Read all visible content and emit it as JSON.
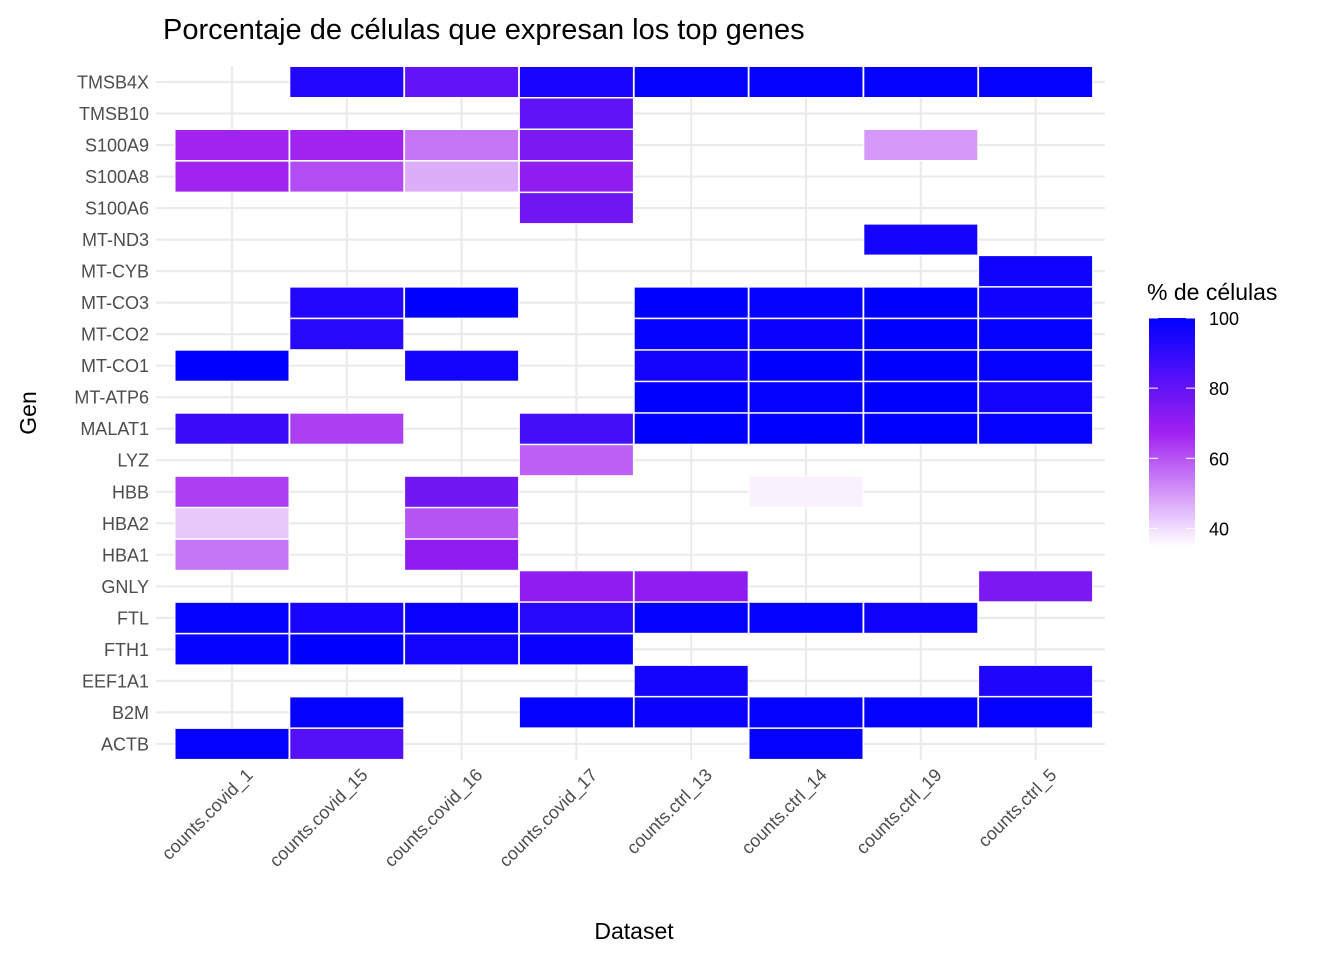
{
  "chart_data": {
    "type": "heatmap",
    "title": "Porcentaje de células que expresan los top genes",
    "xlabel": "Dataset",
    "ylabel": "Gen",
    "x": [
      "counts.covid_1",
      "counts.covid_15",
      "counts.covid_16",
      "counts.covid_17",
      "counts.ctrl_13",
      "counts.ctrl_14",
      "counts.ctrl_19",
      "counts.ctrl_5"
    ],
    "y": [
      "TMSB4X",
      "TMSB10",
      "S100A9",
      "S100A8",
      "S100A6",
      "MT-ND3",
      "MT-CYB",
      "MT-CO3",
      "MT-CO2",
      "MT-CO1",
      "MT-ATP6",
      "MALAT1",
      "LYZ",
      "HBB",
      "HBA2",
      "HBA1",
      "GNLY",
      "FTL",
      "FTH1",
      "EEF1A1",
      "B2M",
      "ACTB"
    ],
    "values": [
      [
        null,
        93,
        80,
        95,
        99,
        99,
        99,
        99
      ],
      [
        null,
        null,
        null,
        81,
        null,
        null,
        null,
        null
      ],
      [
        67,
        67,
        55,
        75,
        null,
        null,
        50,
        null
      ],
      [
        67,
        61,
        47,
        71,
        null,
        null,
        null,
        null
      ],
      [
        null,
        null,
        null,
        77,
        null,
        null,
        null,
        null
      ],
      [
        null,
        null,
        null,
        null,
        null,
        null,
        96,
        null
      ],
      [
        null,
        null,
        null,
        null,
        null,
        null,
        null,
        97
      ],
      [
        null,
        93,
        100,
        null,
        100,
        99,
        100,
        97
      ],
      [
        null,
        92,
        null,
        null,
        99,
        98,
        100,
        99
      ],
      [
        100,
        null,
        96,
        null,
        96,
        100,
        100,
        99
      ],
      [
        null,
        null,
        null,
        null,
        100,
        99,
        100,
        96
      ],
      [
        88,
        63,
        null,
        86,
        100,
        100,
        100,
        99
      ],
      [
        null,
        null,
        null,
        58,
        null,
        null,
        null,
        null
      ],
      [
        63,
        null,
        77,
        null,
        null,
        37,
        null,
        null
      ],
      [
        43,
        null,
        60,
        null,
        null,
        null,
        null,
        null
      ],
      [
        55,
        null,
        71,
        null,
        null,
        null,
        null,
        null
      ],
      [
        null,
        null,
        null,
        71,
        71,
        null,
        null,
        75
      ],
      [
        99,
        95,
        98,
        92,
        99,
        99,
        97,
        null
      ],
      [
        99,
        100,
        96,
        98,
        null,
        null,
        null,
        null
      ],
      [
        null,
        null,
        null,
        null,
        96,
        null,
        null,
        94
      ],
      [
        null,
        99,
        null,
        99,
        98,
        99,
        99,
        99
      ],
      [
        99,
        83,
        null,
        null,
        null,
        99,
        null,
        null
      ]
    ],
    "colorscale": {
      "title": "% de células",
      "low_color": "#ffffff",
      "mid_color": "#a020f0",
      "high_color": "#0000ff",
      "range": [
        35,
        100
      ],
      "ticks": [
        40,
        60,
        80,
        100
      ]
    },
    "grid": true,
    "legend_position": "right"
  }
}
